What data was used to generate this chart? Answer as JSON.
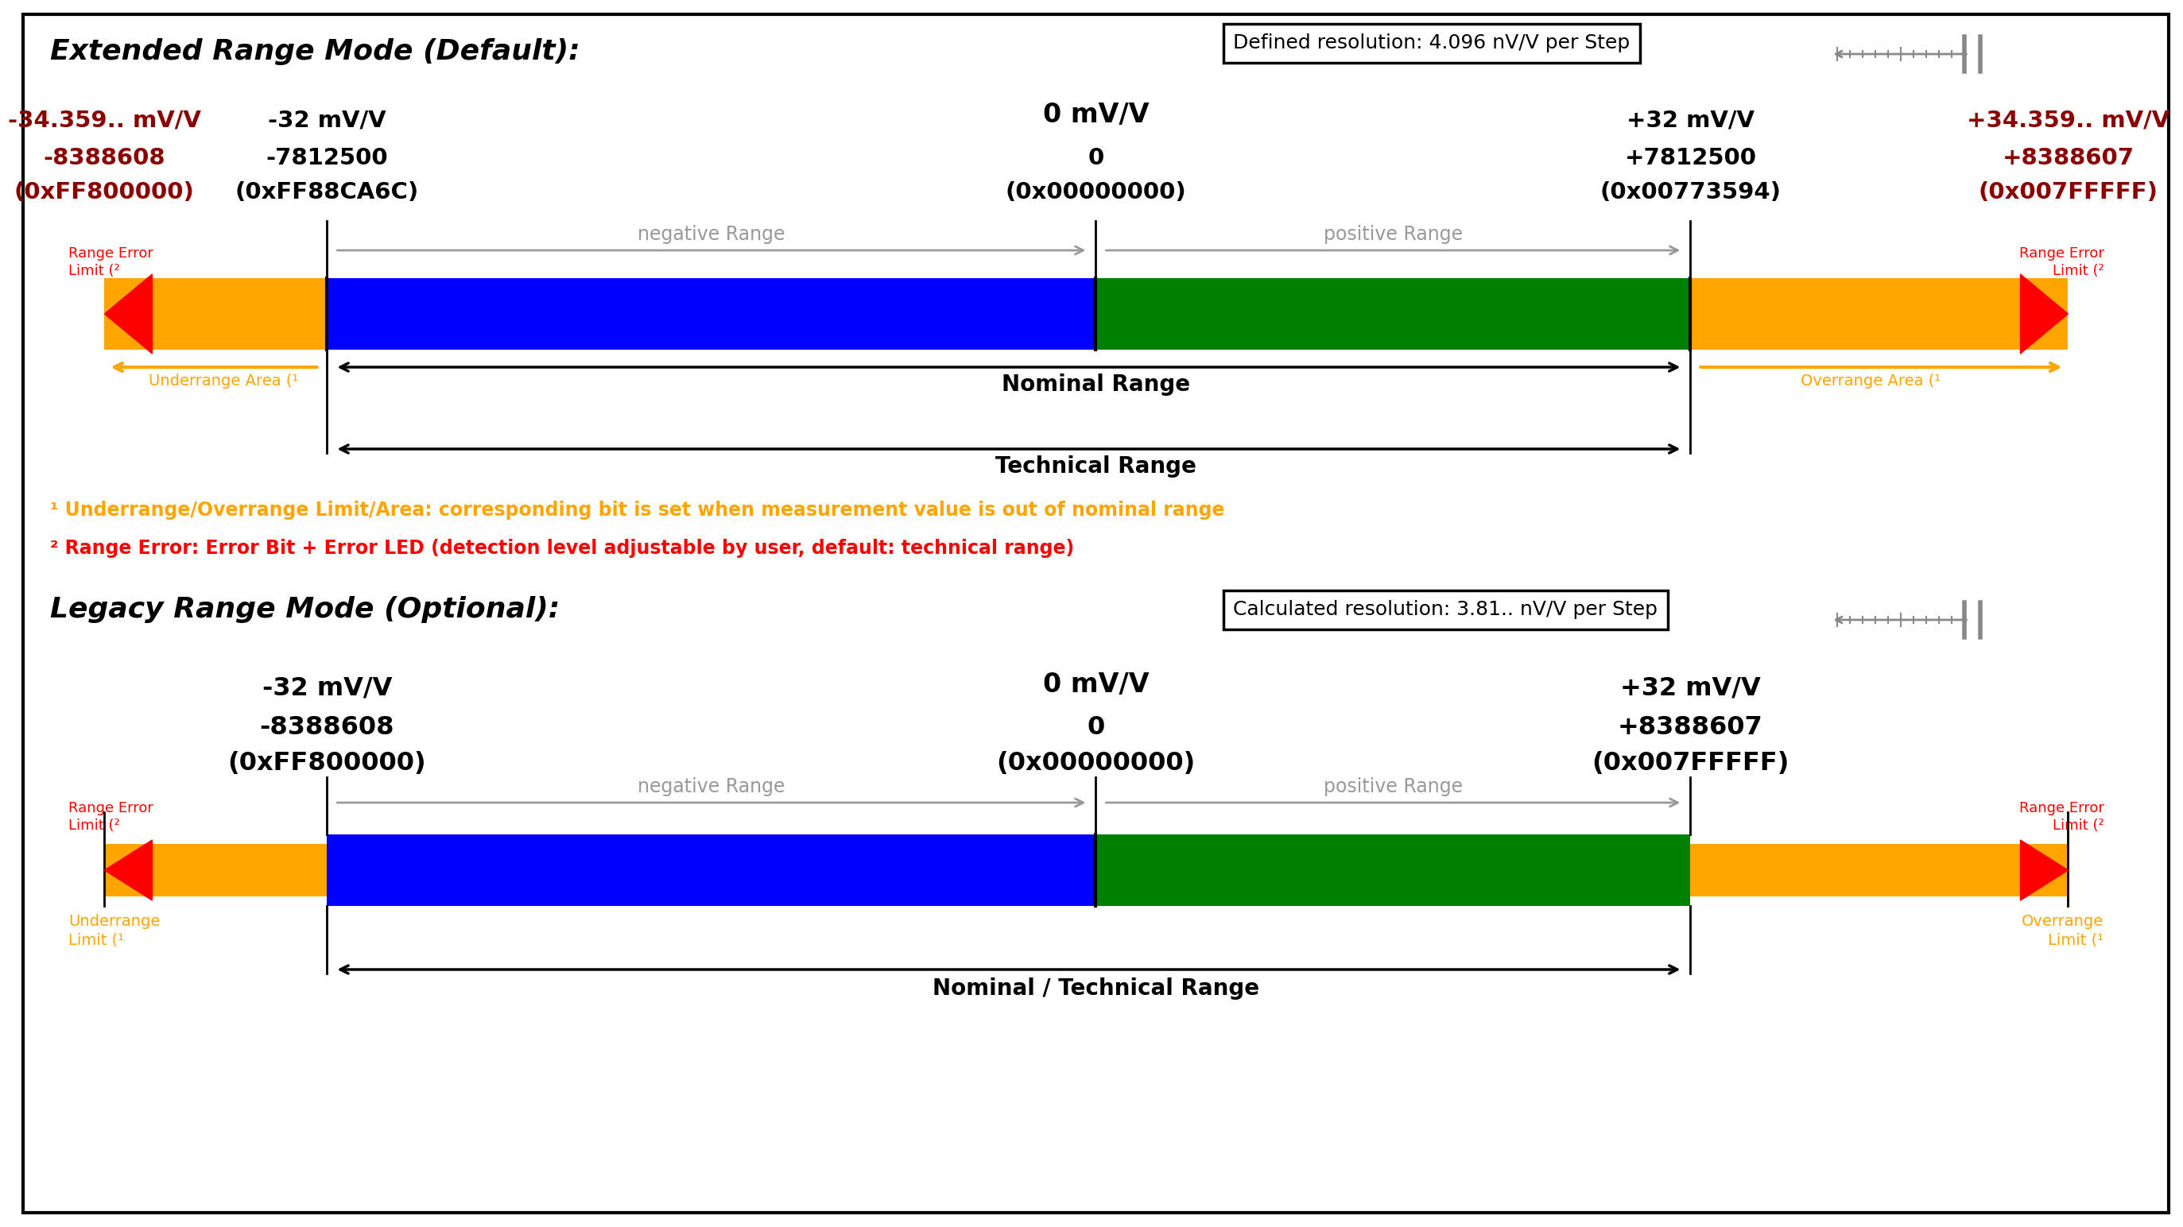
{
  "bg_color": "#ffffff",
  "border_color": "#000000",
  "title1": "Extended Range Mode (Default):",
  "title2": "Legacy Range Mode (Optional):",
  "resolution1_box": "Defined resolution: 4.096 nV/V per Step",
  "resolution2_box": "Calculated resolution: 3.81.. nV/V per Step",
  "orange_color": "#FFA500",
  "blue_color": "#0000FF",
  "green_color": "#008000",
  "red_color": "#FF0000",
  "gray_arrow_color": "#999999",
  "dark_red": "#8B0000",
  "black": "#000000",
  "ext_left_outer_mv": "-34.359.. mV/V",
  "ext_left_outer_num": "-8388608",
  "ext_left_outer_hex": "(0xFF800000)",
  "ext_left_inner_mv": "-32 mV/V",
  "ext_left_inner_num": "-7812500",
  "ext_left_inner_hex": "(0xFF88CA6C)",
  "ext_center_mv": "0 mV/V",
  "ext_center_num": "0",
  "ext_center_hex": "(0x00000000)",
  "ext_right_inner_mv": "+32 mV/V",
  "ext_right_inner_num": "+7812500",
  "ext_right_inner_hex": "(0x00773594)",
  "ext_right_outer_mv": "+34.359.. mV/V",
  "ext_right_outer_num": "+8388607",
  "ext_right_outer_hex": "(0x007FFFFF)",
  "leg_left_mv": "-32 mV/V",
  "leg_left_num": "-8388608",
  "leg_left_hex": "(0xFF800000)",
  "leg_center_mv": "0 mV/V",
  "leg_center_num": "0",
  "leg_center_hex": "(0x00000000)",
  "leg_right_mv": "+32 mV/V",
  "leg_right_num": "+8388607",
  "leg_right_hex": "(0x007FFFFF)",
  "note1": "¹ Underrange/Overrange Limit/Area: corresponding bit is set when measurement value is out of nominal range",
  "note2": "² Range Error: Error Bit + Error LED (detection level adjustable by user, default: technical range)",
  "range_error_label": "Range Error\nLimit (²",
  "underrange_area": "Underrange Area (¹",
  "overrange_area": "Overrange Area (¹",
  "nominal_range": "Nominal Range",
  "technical_range": "Technical Range",
  "negative_range": "negative Range",
  "positive_range": "positive Range",
  "nom_tech_range": "Nominal / Technical Range",
  "underrange_limit": "Underrange\nLimit (¹",
  "overrange_limit": "Overrange\nLimit (¹"
}
